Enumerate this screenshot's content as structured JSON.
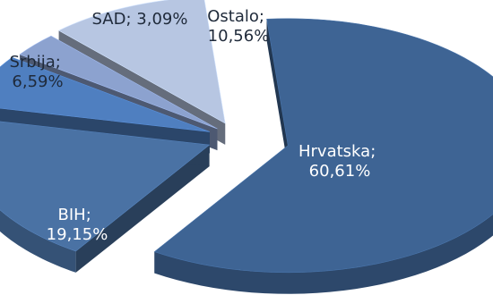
{
  "chart_data": {
    "type": "pie",
    "style": "3d-exploded",
    "title": "",
    "slices": [
      {
        "name": "Hrvatska",
        "value": 60.61,
        "label_line1": "Hrvatska;",
        "label_line2": "60,61%",
        "color": "#3e6494"
      },
      {
        "name": "BIH",
        "value": 19.15,
        "label_line1": "BIH;",
        "label_line2": "19,15%",
        "color": "#4a72a4"
      },
      {
        "name": "Srbija",
        "value": 6.59,
        "label_line1": "Srbija;",
        "label_line2": "6,59%",
        "color": "#4f7fc0"
      },
      {
        "name": "SAD",
        "value": 3.09,
        "label_line1": "SAD; 3,09%",
        "label_line2": "",
        "color": "#8ca2cf"
      },
      {
        "name": "Ostalo",
        "value": 10.56,
        "label_line1": "Ostalo;",
        "label_line2": "10,56%",
        "color": "#b7c6e2"
      }
    ]
  }
}
